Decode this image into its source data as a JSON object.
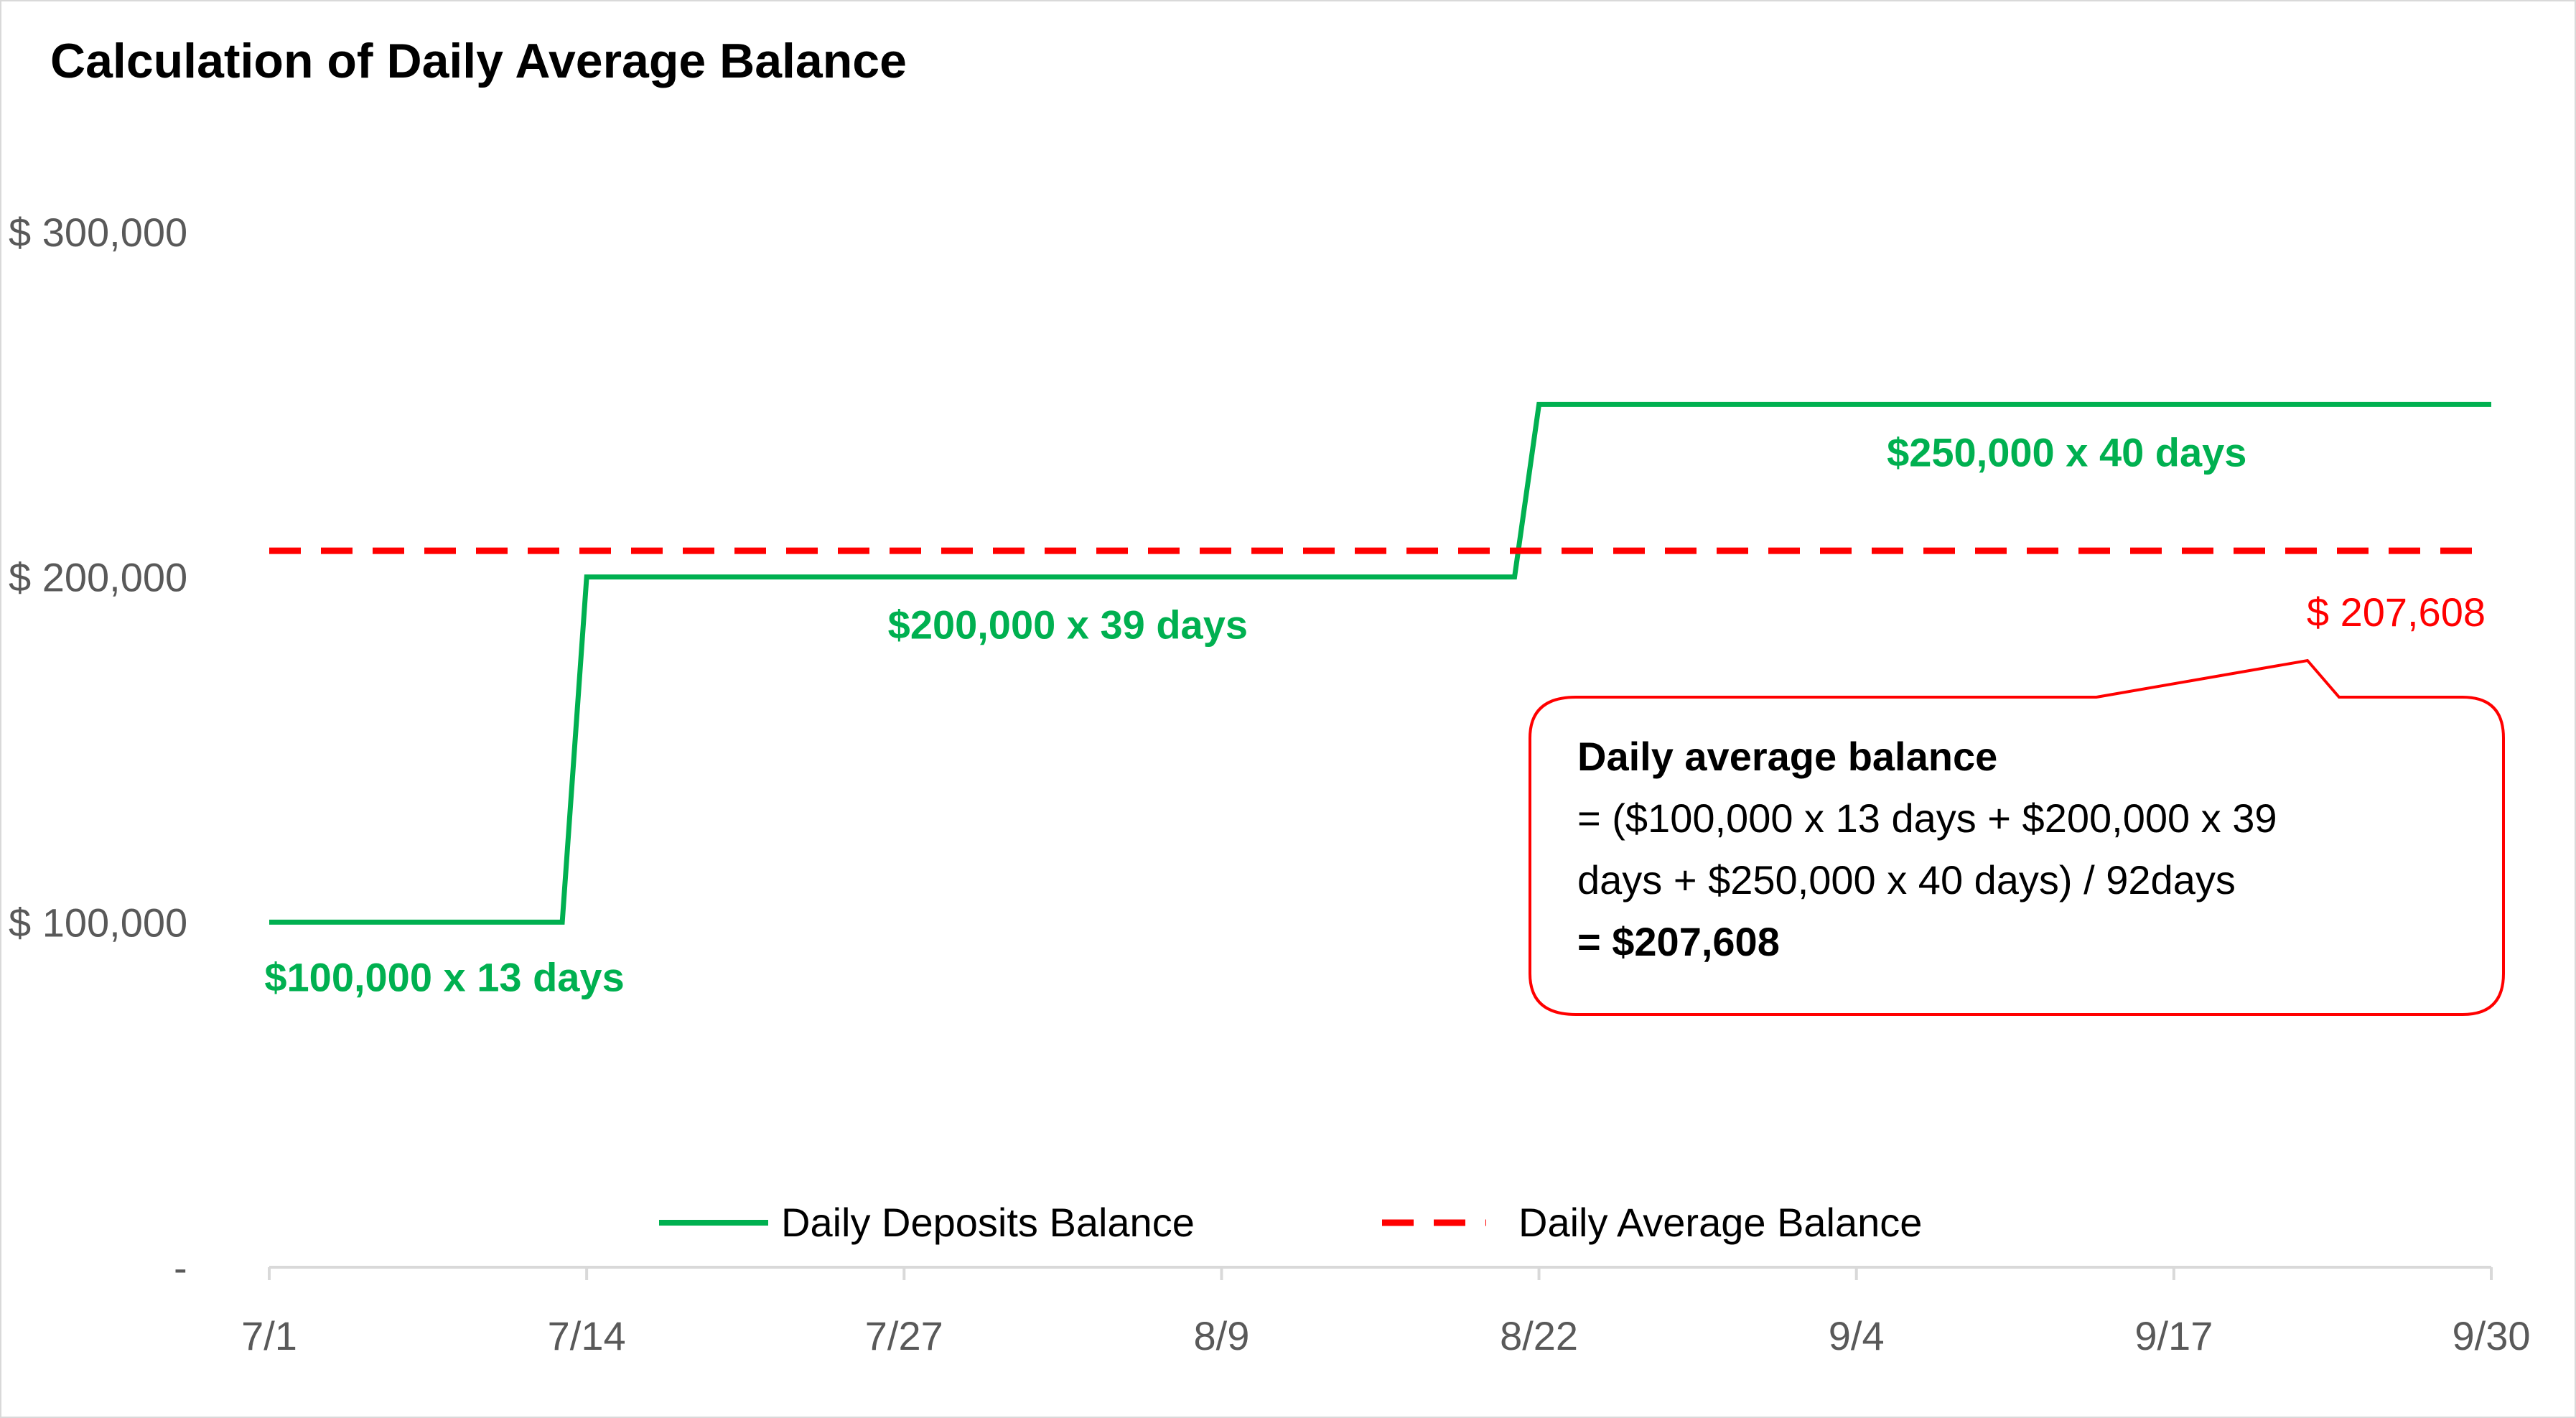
{
  "chart_data": {
    "type": "line",
    "title": "Calculation of Daily Average Balance",
    "xlabel": "",
    "ylabel": "",
    "x_ticks": [
      "7/1",
      "7/14",
      "7/27",
      "8/9",
      "8/22",
      "9/4",
      "9/17",
      "9/30"
    ],
    "x_range_days": [
      0,
      91
    ],
    "y_ticks": [
      0,
      100000,
      200000,
      300000
    ],
    "y_tick_labels": [
      "-",
      "$ 100,000",
      "$ 200,000",
      "$ 300,000"
    ],
    "ylim": [
      0,
      300000
    ],
    "grid": false,
    "legend_position": "bottom",
    "series": [
      {
        "name": "Daily Deposits Balance",
        "color": "#00b050",
        "style": "solid",
        "points": [
          {
            "x": "7/1",
            "y": 100000
          },
          {
            "x": "7/13",
            "y": 100000
          },
          {
            "x": "7/14",
            "y": 200000
          },
          {
            "x": "8/21",
            "y": 200000
          },
          {
            "x": "8/22",
            "y": 250000
          },
          {
            "x": "9/30",
            "y": 250000
          }
        ]
      },
      {
        "name": "Daily Average Balance",
        "color": "#ff0000",
        "style": "dashed",
        "points": [
          {
            "x": "7/1",
            "y": 207608
          },
          {
            "x": "9/30",
            "y": 207608
          }
        ]
      }
    ],
    "segment_labels": [
      {
        "text": "$100,000 x 13 days"
      },
      {
        "text": "$200,000 x 39 days"
      },
      {
        "text": "$250,000 x 40 days"
      }
    ],
    "average_label": "$ 207,608",
    "callout": {
      "title": "Daily average balance",
      "line1": "= ($100,000 x 13 days + $200,000 x 39",
      "line2": "days + $250,000 x 40 days) / 92days",
      "result": "= $207,608"
    }
  },
  "colors": {
    "green": "#00b050",
    "red": "#ff0000",
    "axis": "#d9d9d9",
    "tick_text": "#595959",
    "title": "#000000"
  }
}
